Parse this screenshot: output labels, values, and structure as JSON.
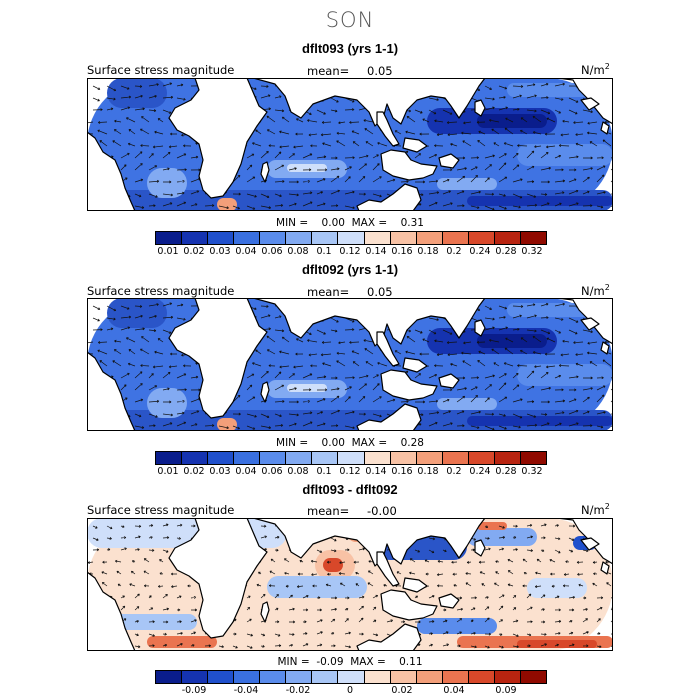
{
  "figure": {
    "season_title": "SON",
    "var_label": "Surface stress magnitude",
    "units_base": "N/m",
    "units_exp": "2"
  },
  "chart_data": [
    {
      "type": "heatmap",
      "title": "dflt093 (yrs 1-1)",
      "variable": "Surface stress magnitude",
      "mean_label": "mean=",
      "mean_value": "0.05",
      "min_label": "MIN =",
      "min_value": "0.00",
      "max_label": "MAX =",
      "max_value": "0.31",
      "colorbar_ticks": [
        "0.01",
        "0.02",
        "0.03",
        "0.04",
        "0.06",
        "0.08",
        "0.1",
        "0.12",
        "0.14",
        "0.16",
        "0.18",
        "0.2",
        "0.24",
        "0.28",
        "0.32"
      ],
      "colors": [
        "#0a1d8c",
        "#1533b0",
        "#2050cc",
        "#3a70e0",
        "#5a8cec",
        "#82aaf2",
        "#a8c6f6",
        "#cfdffa",
        "#fbe1cf",
        "#f8c2a5",
        "#f39f7a",
        "#ea7450",
        "#d8482a",
        "#b82410",
        "#900a00"
      ]
    },
    {
      "type": "heatmap",
      "title": "dflt092 (yrs 1-1)",
      "variable": "Surface stress magnitude",
      "mean_label": "mean=",
      "mean_value": "0.05",
      "min_label": "MIN =",
      "min_value": "0.00",
      "max_label": "MAX =",
      "max_value": "0.28",
      "colorbar_ticks": [
        "0.01",
        "0.02",
        "0.03",
        "0.04",
        "0.06",
        "0.08",
        "0.1",
        "0.12",
        "0.14",
        "0.16",
        "0.18",
        "0.2",
        "0.24",
        "0.28",
        "0.32"
      ],
      "colors": [
        "#0a1d8c",
        "#1533b0",
        "#2050cc",
        "#3a70e0",
        "#5a8cec",
        "#82aaf2",
        "#a8c6f6",
        "#cfdffa",
        "#fbe1cf",
        "#f8c2a5",
        "#f39f7a",
        "#ea7450",
        "#d8482a",
        "#b82410",
        "#900a00"
      ]
    },
    {
      "type": "heatmap",
      "title": "dflt093 - dflt092",
      "variable": "Surface stress magnitude",
      "mean_label": "mean=",
      "mean_value": "-0.00",
      "min_label": "MIN =",
      "min_value": "-0.09",
      "max_label": "MAX =",
      "max_value": "0.11",
      "colorbar_ticks": [
        "",
        "-0.09",
        "",
        "-0.04",
        "",
        "-0.02",
        "",
        "0",
        "",
        "0.02",
        "",
        "0.04",
        "",
        "0.09",
        ""
      ],
      "colors": [
        "#0a1d8c",
        "#1533b0",
        "#2050cc",
        "#3a70e0",
        "#5a8cec",
        "#82aaf2",
        "#a8c6f6",
        "#cfdffa",
        "#fbe1cf",
        "#f8c2a5",
        "#f39f7a",
        "#ea7450",
        "#d8482a",
        "#b82410",
        "#900a00"
      ]
    }
  ]
}
